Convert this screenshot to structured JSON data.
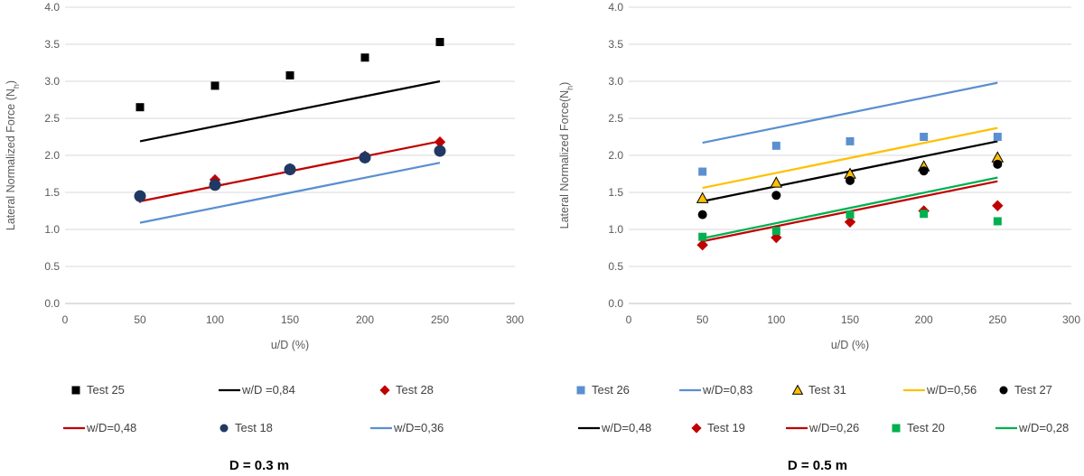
{
  "chart_data": [
    {
      "type": "scatter",
      "caption": "D = 0.3 m",
      "xlabel": "u/D (%)",
      "ylabel": "Lateral Normalized Force (N",
      "ylabel_sub": "h",
      "ylabel_end": ")",
      "xlim": [
        0,
        300
      ],
      "ylim": [
        0,
        4
      ],
      "xticks": [
        "0",
        "50",
        "100",
        "150",
        "200",
        "250",
        "300"
      ],
      "yticks": [
        "0.0",
        "0.5",
        "1.0",
        "1.5",
        "2.0",
        "2.5",
        "3.0",
        "3.5",
        "4.0"
      ],
      "grid": true,
      "series": [
        {
          "name": "Test 25",
          "kind": "points",
          "marker": "square",
          "color": "#000000",
          "x": [
            50,
            100,
            150,
            200,
            250
          ],
          "y": [
            2.65,
            2.94,
            3.08,
            3.32,
            3.53
          ]
        },
        {
          "name": "w/D =0,84",
          "kind": "line",
          "color": "#000000",
          "x": [
            50,
            250
          ],
          "y": [
            2.19,
            3.0
          ]
        },
        {
          "name": "Test 28",
          "kind": "points",
          "marker": "diamond",
          "color": "#c00000",
          "x": [
            50,
            100,
            150,
            200,
            250
          ],
          "y": [
            1.43,
            1.67,
            1.82,
            1.99,
            2.18
          ]
        },
        {
          "name": "w/D=0,48",
          "kind": "line",
          "color": "#c00000",
          "x": [
            50,
            250
          ],
          "y": [
            1.38,
            2.19
          ]
        },
        {
          "name": "Test 18",
          "kind": "points",
          "marker": "circle",
          "color": "#203864",
          "x": [
            50,
            100,
            150,
            200,
            250
          ],
          "y": [
            1.45,
            1.6,
            1.81,
            1.97,
            2.06
          ]
        },
        {
          "name": "w/D=0,36",
          "kind": "line",
          "color": "#5b8fd0",
          "x": [
            50,
            250
          ],
          "y": [
            1.09,
            1.9
          ]
        }
      ]
    },
    {
      "type": "scatter",
      "caption": "D = 0.5 m",
      "xlabel": "u/D (%)",
      "ylabel": "Lateral Normalized Force(N",
      "ylabel_sub": "h",
      "ylabel_end": ")",
      "xlim": [
        0,
        300
      ],
      "ylim": [
        0,
        4
      ],
      "xticks": [
        "0",
        "50",
        "100",
        "150",
        "200",
        "250",
        "300"
      ],
      "yticks": [
        "0.0",
        "0.5",
        "1.0",
        "1.5",
        "2.0",
        "2.5",
        "3.0",
        "3.5",
        "4.0"
      ],
      "grid": true,
      "series": [
        {
          "name": "Test 26",
          "kind": "points",
          "marker": "square",
          "color": "#5b8fd0",
          "x": [
            50,
            100,
            150,
            200,
            250
          ],
          "y": [
            1.78,
            2.13,
            2.19,
            2.25,
            2.25
          ]
        },
        {
          "name": "w/D=0,83",
          "kind": "line",
          "color": "#5b8fd0",
          "x": [
            50,
            250
          ],
          "y": [
            2.17,
            2.98
          ]
        },
        {
          "name": "Test 31",
          "kind": "points",
          "marker": "triangle",
          "color": "#ffc000",
          "x": [
            50,
            100,
            150,
            200,
            250
          ],
          "y": [
            1.42,
            1.63,
            1.75,
            1.85,
            1.97
          ]
        },
        {
          "name": "w/D=0,56",
          "kind": "line",
          "color": "#ffc000",
          "x": [
            50,
            250
          ],
          "y": [
            1.56,
            2.37
          ]
        },
        {
          "name": "Test 27",
          "kind": "points",
          "marker": "circle",
          "color": "#000000",
          "x": [
            50,
            100,
            150,
            200,
            250
          ],
          "y": [
            1.2,
            1.46,
            1.66,
            1.79,
            1.88
          ]
        },
        {
          "name": "w/D=0,48",
          "kind": "line",
          "color": "#000000",
          "x": [
            50,
            250
          ],
          "y": [
            1.38,
            2.19
          ]
        },
        {
          "name": "Test 19",
          "kind": "points",
          "marker": "diamond",
          "color": "#c00000",
          "x": [
            50,
            100,
            150,
            200,
            250
          ],
          "y": [
            0.79,
            0.89,
            1.1,
            1.25,
            1.32
          ]
        },
        {
          "name": "w/D=0,26",
          "kind": "line",
          "color": "#c00000",
          "x": [
            50,
            250
          ],
          "y": [
            0.84,
            1.65
          ]
        },
        {
          "name": "Test 20",
          "kind": "points",
          "marker": "square",
          "color": "#00b050",
          "x": [
            50,
            100,
            150,
            200,
            250
          ],
          "y": [
            0.9,
            0.98,
            1.2,
            1.21,
            1.11
          ]
        },
        {
          "name": "w/D=0,28",
          "kind": "line",
          "color": "#00b050",
          "x": [
            50,
            250
          ],
          "y": [
            0.88,
            1.7
          ]
        }
      ]
    }
  ]
}
